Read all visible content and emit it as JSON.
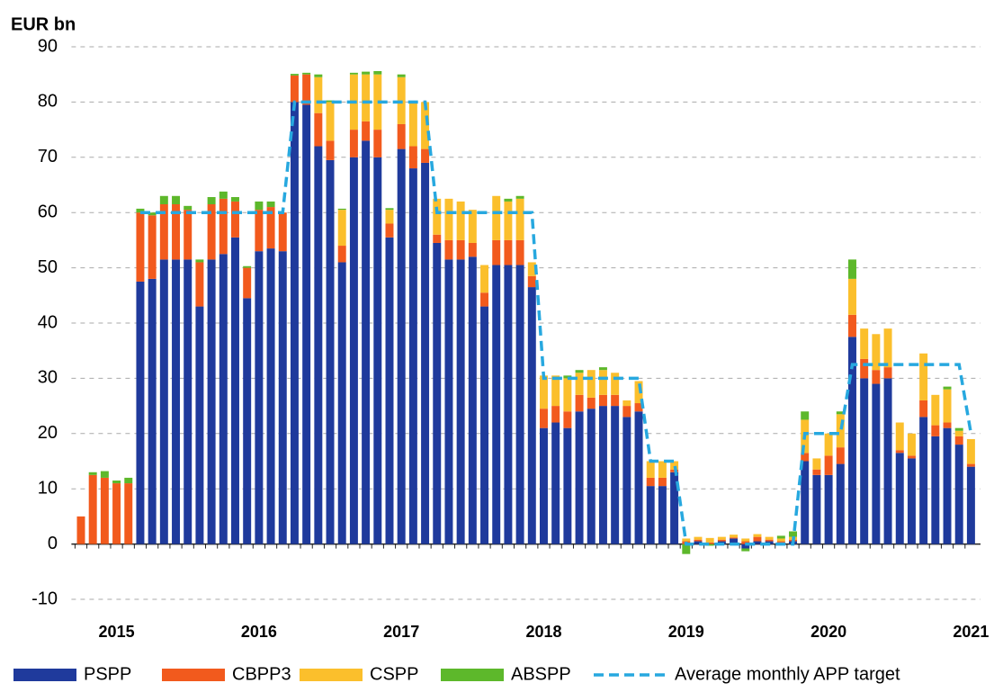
{
  "chart_data": {
    "type": "bar",
    "stacked": true,
    "ylabel": "EUR bn",
    "ylim": [
      -10,
      90
    ],
    "yticks": [
      -10,
      0,
      10,
      20,
      30,
      40,
      50,
      60,
      70,
      80,
      90
    ],
    "grid": true,
    "legend": "bottom",
    "categories": [
      null,
      null,
      null,
      "2015",
      null,
      null,
      null,
      null,
      null,
      null,
      null,
      null,
      null,
      null,
      null,
      "2016",
      null,
      null,
      null,
      null,
      null,
      null,
      null,
      null,
      null,
      null,
      null,
      "2017",
      null,
      null,
      null,
      null,
      null,
      null,
      null,
      null,
      null,
      null,
      null,
      "2018",
      null,
      null,
      null,
      null,
      null,
      null,
      null,
      null,
      null,
      null,
      null,
      "2019",
      null,
      null,
      null,
      null,
      null,
      null,
      null,
      null,
      null,
      null,
      null,
      "2020",
      null,
      null,
      null,
      null,
      null,
      null,
      null,
      null,
      null,
      null,
      null,
      "2021"
    ],
    "series": [
      {
        "name": "PSPP",
        "color": "#1f3a9c",
        "values": [
          0,
          0,
          0,
          0,
          0,
          47.5,
          48,
          51.5,
          51.5,
          51.5,
          43,
          51.5,
          52.5,
          55.5,
          44.5,
          53,
          53.5,
          53,
          80,
          79.5,
          72,
          69.5,
          51,
          70,
          73,
          70,
          55.5,
          71.5,
          68,
          69,
          54.5,
          51.5,
          51.5,
          52,
          43,
          50.5,
          50.5,
          50.5,
          46.5,
          21,
          22,
          21,
          24,
          24.5,
          25,
          25,
          23,
          24,
          10.5,
          10.5,
          13,
          0,
          0.5,
          0,
          0.5,
          1,
          -0.8,
          0.5,
          0.5,
          0.3,
          0.5,
          15,
          12.5,
          12.5,
          14.5,
          37.5,
          30,
          29,
          30,
          16.5,
          15.5,
          23,
          19.5,
          21,
          18,
          14
        ]
      },
      {
        "name": "CBPP3",
        "color": "#f25a1d",
        "values": [
          5,
          12.5,
          12,
          11,
          11,
          12.5,
          11.5,
          10,
          10,
          9,
          8,
          10,
          10,
          6.5,
          5.5,
          7.5,
          7.5,
          7,
          4.8,
          5.5,
          6,
          3.5,
          3,
          5,
          3.5,
          5,
          2.5,
          4.5,
          4,
          2.5,
          1.5,
          3.5,
          3.5,
          2.5,
          2.5,
          4.5,
          4.5,
          4.5,
          2,
          3.5,
          3,
          3,
          3,
          2,
          2,
          2,
          2,
          1.5,
          1.5,
          1.5,
          0.5,
          0.5,
          0.3,
          0.3,
          0.3,
          0.2,
          0.5,
          0.8,
          0.3,
          0.2,
          0.3,
          1.5,
          1,
          3.5,
          3,
          4,
          3.5,
          2.5,
          2,
          0.5,
          0.5,
          3,
          2,
          1,
          1.5,
          0.5
        ]
      },
      {
        "name": "CSPP",
        "color": "#fbbf2c",
        "values": [
          0,
          0,
          0,
          0,
          0,
          0,
          0,
          0,
          0,
          0,
          0,
          0,
          0,
          0,
          0,
          0,
          0,
          0,
          0,
          0,
          6.5,
          7,
          6.5,
          10,
          8.5,
          10,
          2.5,
          8.5,
          8,
          8.5,
          6.5,
          7.5,
          7,
          6,
          5,
          8,
          7,
          7.5,
          2.5,
          6,
          5.5,
          6,
          4,
          5,
          4.5,
          4,
          1,
          4,
          3,
          3,
          1.5,
          0.5,
          0.5,
          0.8,
          0.5,
          0.5,
          0.5,
          0.5,
          0.5,
          0.5,
          0.5,
          6,
          2,
          4,
          6,
          6.5,
          5.5,
          6.5,
          7,
          5,
          4,
          8.5,
          5.5,
          6,
          1,
          4.5
        ]
      },
      {
        "name": "ABSPP",
        "color": "#5db82b",
        "values": [
          0,
          0.5,
          1.2,
          0.5,
          1,
          0.7,
          0.5,
          1.5,
          1.5,
          0.7,
          0.5,
          1.3,
          1.3,
          0.8,
          0.3,
          1.5,
          1,
          0,
          0.3,
          0.3,
          0.5,
          0.3,
          0.2,
          0.3,
          0.5,
          0.6,
          0.3,
          0.5,
          0,
          0,
          0,
          0,
          0,
          0,
          0,
          0,
          0.5,
          0.5,
          0,
          0,
          0,
          0.5,
          0.5,
          0,
          0.5,
          0,
          0,
          0,
          0,
          0,
          0,
          -1.8,
          0,
          -0.3,
          0,
          0,
          -0.5,
          0,
          0,
          0.5,
          1,
          1.5,
          0,
          0,
          0.5,
          3.5,
          0,
          0,
          0,
          0,
          0,
          0,
          0,
          0.5,
          0.5,
          0
        ]
      },
      {
        "name": "Average monthly APP target",
        "type": "line",
        "dashed": true,
        "color": "#27a8df",
        "values": [
          null,
          null,
          null,
          null,
          null,
          60,
          60,
          60,
          60,
          60,
          60,
          60,
          60,
          60,
          60,
          60,
          60,
          60,
          80,
          80,
          80,
          80,
          80,
          80,
          80,
          80,
          80,
          80,
          80,
          80,
          60,
          60,
          60,
          60,
          60,
          60,
          60,
          60,
          60,
          30,
          30,
          30,
          30,
          30,
          30,
          30,
          30,
          30,
          15,
          15,
          15,
          0,
          0,
          0,
          0,
          0,
          0,
          0,
          0,
          0,
          0,
          20,
          20,
          20,
          20,
          32.5,
          32.5,
          32.5,
          32.5,
          32.5,
          32.5,
          32.5,
          32.5,
          32.5,
          32.5,
          20
        ]
      }
    ]
  }
}
